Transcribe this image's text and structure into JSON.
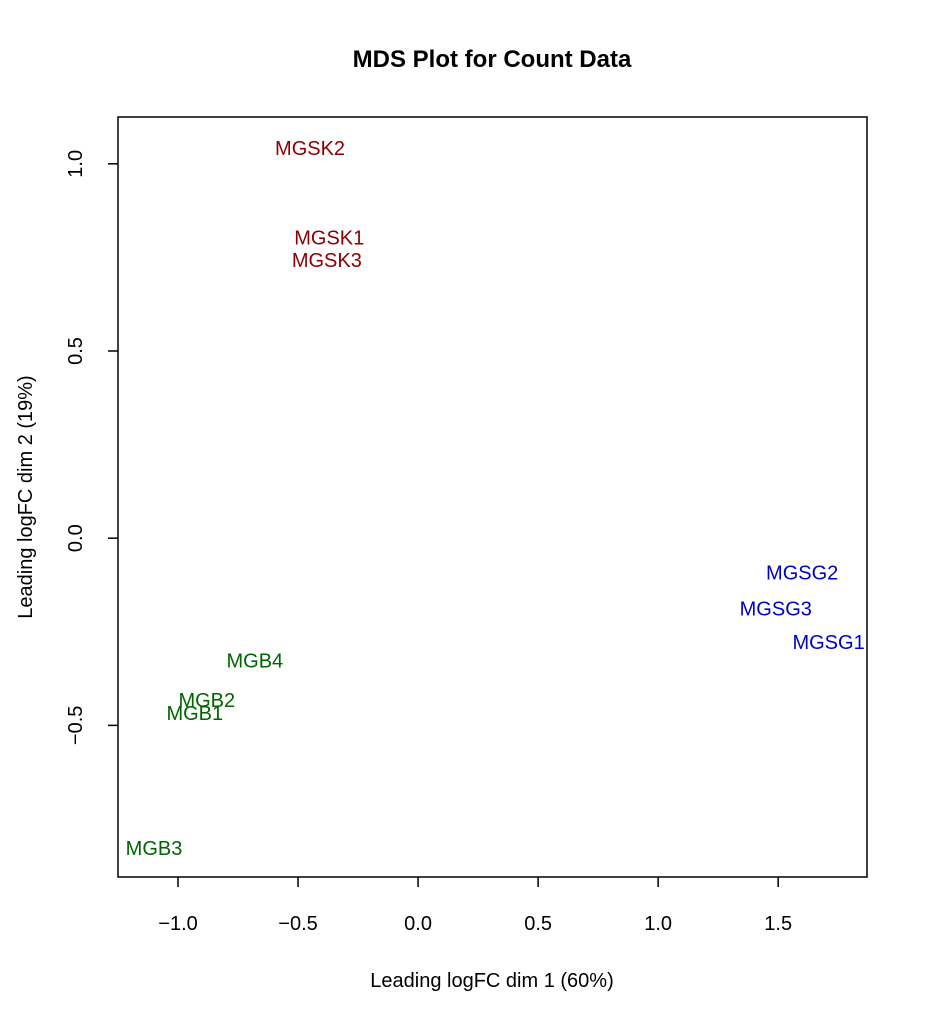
{
  "chart_data": {
    "type": "scatter",
    "title": "MDS Plot for Count Data",
    "xlabel": "Leading logFC dim 1 (60%)",
    "ylabel": "Leading logFC dim 2 (19%)",
    "xlim": [
      -1.25,
      1.87
    ],
    "ylim": [
      -0.905,
      1.125
    ],
    "xticks": [
      {
        "value": -1.0,
        "label": "−1.0"
      },
      {
        "value": -0.5,
        "label": "−0.5"
      },
      {
        "value": 0.0,
        "label": "0.0"
      },
      {
        "value": 0.5,
        "label": "0.5"
      },
      {
        "value": 1.0,
        "label": "1.0"
      },
      {
        "value": 1.5,
        "label": "1.5"
      }
    ],
    "yticks": [
      {
        "value": -0.5,
        "label": "−0.5"
      },
      {
        "value": 0.0,
        "label": "0.0"
      },
      {
        "value": 0.5,
        "label": "0.5"
      },
      {
        "value": 1.0,
        "label": "1.0"
      }
    ],
    "grid": false,
    "legend": "none",
    "colors": {
      "MGSK": "#8b0000",
      "MGSG": "#0000cd",
      "MGB": "#006400"
    },
    "points": [
      {
        "label": "MGSK2",
        "x": -0.45,
        "y": 1.04,
        "group": "MGSK"
      },
      {
        "label": "MGSK1",
        "x": -0.37,
        "y": 0.8,
        "group": "MGSK"
      },
      {
        "label": "MGSK3",
        "x": -0.38,
        "y": 0.74,
        "group": "MGSK"
      },
      {
        "label": "MGSG2",
        "x": 1.6,
        "y": -0.095,
        "group": "MGSG"
      },
      {
        "label": "MGSG3",
        "x": 1.49,
        "y": -0.19,
        "group": "MGSG"
      },
      {
        "label": "MGSG1",
        "x": 1.71,
        "y": -0.28,
        "group": "MGSG"
      },
      {
        "label": "MGB4",
        "x": -0.68,
        "y": -0.33,
        "group": "MGB"
      },
      {
        "label": "MGB2",
        "x": -0.88,
        "y": -0.435,
        "group": "MGB"
      },
      {
        "label": "MGB1",
        "x": -0.93,
        "y": -0.47,
        "group": "MGB"
      },
      {
        "label": "MGB3",
        "x": -1.1,
        "y": -0.83,
        "group": "MGB"
      }
    ]
  }
}
